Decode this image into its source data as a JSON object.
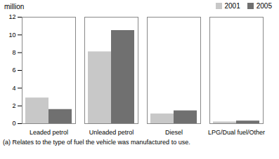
{
  "chart_data": {
    "type": "bar",
    "categories": [
      "Leaded petrol",
      "Unleaded petrol",
      "Diesel",
      "LPG/Dual fuel/Other"
    ],
    "series": [
      {
        "name": "2001",
        "color": "#c8c8c8",
        "values": [
          2.9,
          8.1,
          1.1,
          0.2
        ]
      },
      {
        "name": "2005",
        "color": "#707070",
        "values": [
          1.6,
          10.5,
          1.45,
          0.3
        ]
      }
    ],
    "ylabel": "million",
    "ylim": [
      0,
      12
    ],
    "yticks": [
      0,
      2,
      4,
      6,
      8,
      10,
      12
    ],
    "legend": "upper right",
    "grid": false,
    "annotations": [
      "(a) Relates to the type of fuel the vehicle was manufactured to use."
    ]
  }
}
